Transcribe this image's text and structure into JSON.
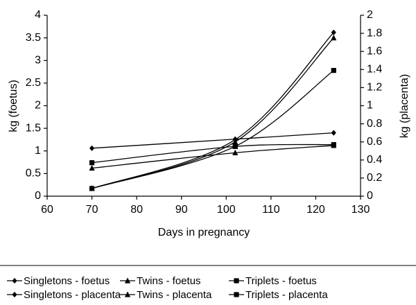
{
  "chart_data": {
    "type": "line",
    "x_label": "Days in pregnancy",
    "y_label": "kg (foetus)",
    "y2_label": "kg (placenta)",
    "x": [
      70,
      102,
      124
    ],
    "xlim": [
      60,
      130
    ],
    "xticks": [
      60,
      70,
      80,
      90,
      100,
      110,
      120,
      130
    ],
    "ylim": [
      0,
      4
    ],
    "yticks": [
      0,
      0.5,
      1,
      1.5,
      2,
      2.5,
      3,
      3.5,
      4
    ],
    "y2lim": [
      0,
      2
    ],
    "y2ticks": [
      0,
      0.2,
      0.4,
      0.6,
      0.8,
      1,
      1.2,
      1.4,
      1.6,
      1.8,
      2
    ],
    "grid": false,
    "legend": "bottom",
    "series": [
      {
        "name": "Singletons - foetus",
        "color": "#000000",
        "marker": "diamond",
        "values": [
          0.17,
          1.25,
          3.62
        ]
      },
      {
        "name": "Twins - foetus",
        "color": "#000000",
        "marker": "triangle",
        "values": [
          0.17,
          1.2,
          3.5
        ]
      },
      {
        "name": "Triplets - foetus",
        "color": "#000000",
        "marker": "square",
        "values": [
          0.17,
          1.1,
          2.78
        ]
      },
      {
        "name": "Singletons - placenta",
        "color": "#000000",
        "marker": "diamond",
        "axis": "y2",
        "values": [
          0.53,
          0.63,
          0.7
        ]
      },
      {
        "name": "Twins - placenta",
        "color": "#000000",
        "marker": "triangle",
        "axis": "y2",
        "values": [
          0.31,
          0.48,
          0.56
        ]
      },
      {
        "name": "Triplets - placenta",
        "color": "#000000",
        "marker": "square",
        "axis": "y2",
        "values": [
          0.37,
          0.55,
          0.57
        ]
      }
    ]
  }
}
